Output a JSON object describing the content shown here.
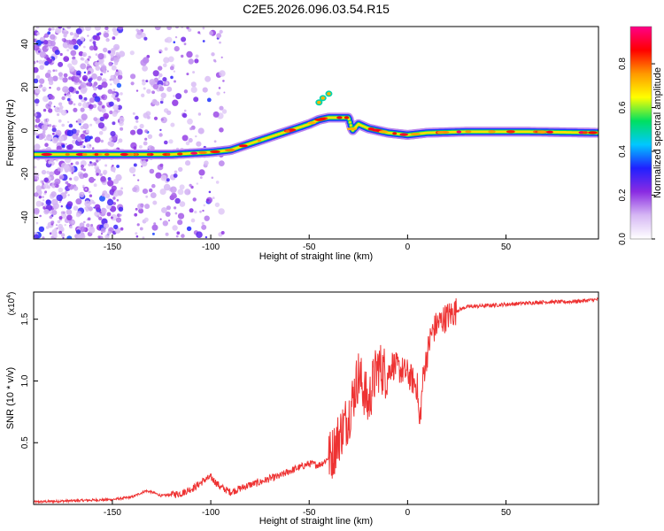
{
  "title": "C2E5.2026.096.03.54.R15",
  "chart_data": [
    {
      "type": "heatmap",
      "name": "spectrogram",
      "xlabel": "Height of straight line (km)",
      "ylabel": "Frequency (Hz)",
      "xlim": [
        -190,
        97
      ],
      "ylim": [
        -50,
        48
      ],
      "x_ticks": [
        -150,
        -100,
        -50,
        0,
        50
      ],
      "y_ticks": [
        -40,
        -20,
        0,
        20,
        40
      ],
      "colorbar": {
        "label": "Normalized spectral amplitude",
        "range": [
          0,
          0.97
        ],
        "ticks": [
          0.0,
          0.2,
          0.4,
          0.6,
          0.8
        ],
        "colormap": [
          "#ffffff",
          "#d6b8f4",
          "#8a2be2",
          "#2020ff",
          "#00c8ff",
          "#00e060",
          "#ffff00",
          "#ff9900",
          "#ff0000",
          "#ff0088"
        ]
      },
      "ridge": {
        "x": [
          -190,
          -150,
          -120,
          -100,
          -90,
          -80,
          -70,
          -60,
          -50,
          -45,
          -40,
          -35,
          -30,
          -28,
          -25,
          -20,
          -15,
          -10,
          0,
          10,
          30,
          60,
          97
        ],
        "y": [
          -11,
          -11,
          -11,
          -10,
          -9,
          -6,
          -3,
          0,
          3,
          5,
          6,
          6,
          6,
          0,
          3,
          1,
          0,
          -1,
          -2,
          -1,
          -0.5,
          -0.5,
          -1
        ]
      },
      "side_branch": {
        "x": [
          -45,
          -43,
          -40
        ],
        "y": [
          13,
          15,
          17
        ]
      }
    },
    {
      "type": "line",
      "name": "snr",
      "xlabel": "Height of straight line (km)",
      "ylabel": "SNR (10 * v/v)",
      "y_multiplier": "(x10",
      "y_multiplier_exp": "4",
      "y_multiplier_close": ")",
      "xlim": [
        -190,
        97
      ],
      "ylim": [
        0,
        1.72
      ],
      "x_ticks": [
        -150,
        -100,
        -50,
        0,
        50
      ],
      "y_ticks": [
        0.5,
        1.0,
        1.5
      ],
      "y_tick_labels": [
        "0.5",
        "1.0",
        "1.5"
      ],
      "line_color": "#ee3333",
      "x": [
        -190,
        -170,
        -150,
        -140,
        -133,
        -130,
        -125,
        -115,
        -108,
        -103,
        -100,
        -95,
        -90,
        -85,
        -80,
        -75,
        -70,
        -65,
        -60,
        -55,
        -50,
        -45,
        -42,
        -38,
        -35,
        -30,
        -28,
        -25,
        -22,
        -20,
        -18,
        -15,
        -12,
        -10,
        -8,
        -5,
        0,
        5,
        6,
        8,
        10,
        12,
        15,
        20,
        25,
        30,
        40,
        50,
        60,
        70,
        80,
        90,
        97
      ],
      "y": [
        0.02,
        0.03,
        0.04,
        0.06,
        0.11,
        0.1,
        0.07,
        0.09,
        0.14,
        0.2,
        0.22,
        0.14,
        0.1,
        0.13,
        0.16,
        0.18,
        0.21,
        0.23,
        0.27,
        0.3,
        0.33,
        0.32,
        0.35,
        0.42,
        0.55,
        0.72,
        0.85,
        1.05,
        0.92,
        0.8,
        0.96,
        1.12,
        1.08,
        1.05,
        1.14,
        1.1,
        1.06,
        0.95,
        0.62,
        1.05,
        1.22,
        1.38,
        1.46,
        1.52,
        1.57,
        1.6,
        1.61,
        1.62,
        1.63,
        1.64,
        1.64,
        1.65,
        1.66
      ]
    }
  ]
}
